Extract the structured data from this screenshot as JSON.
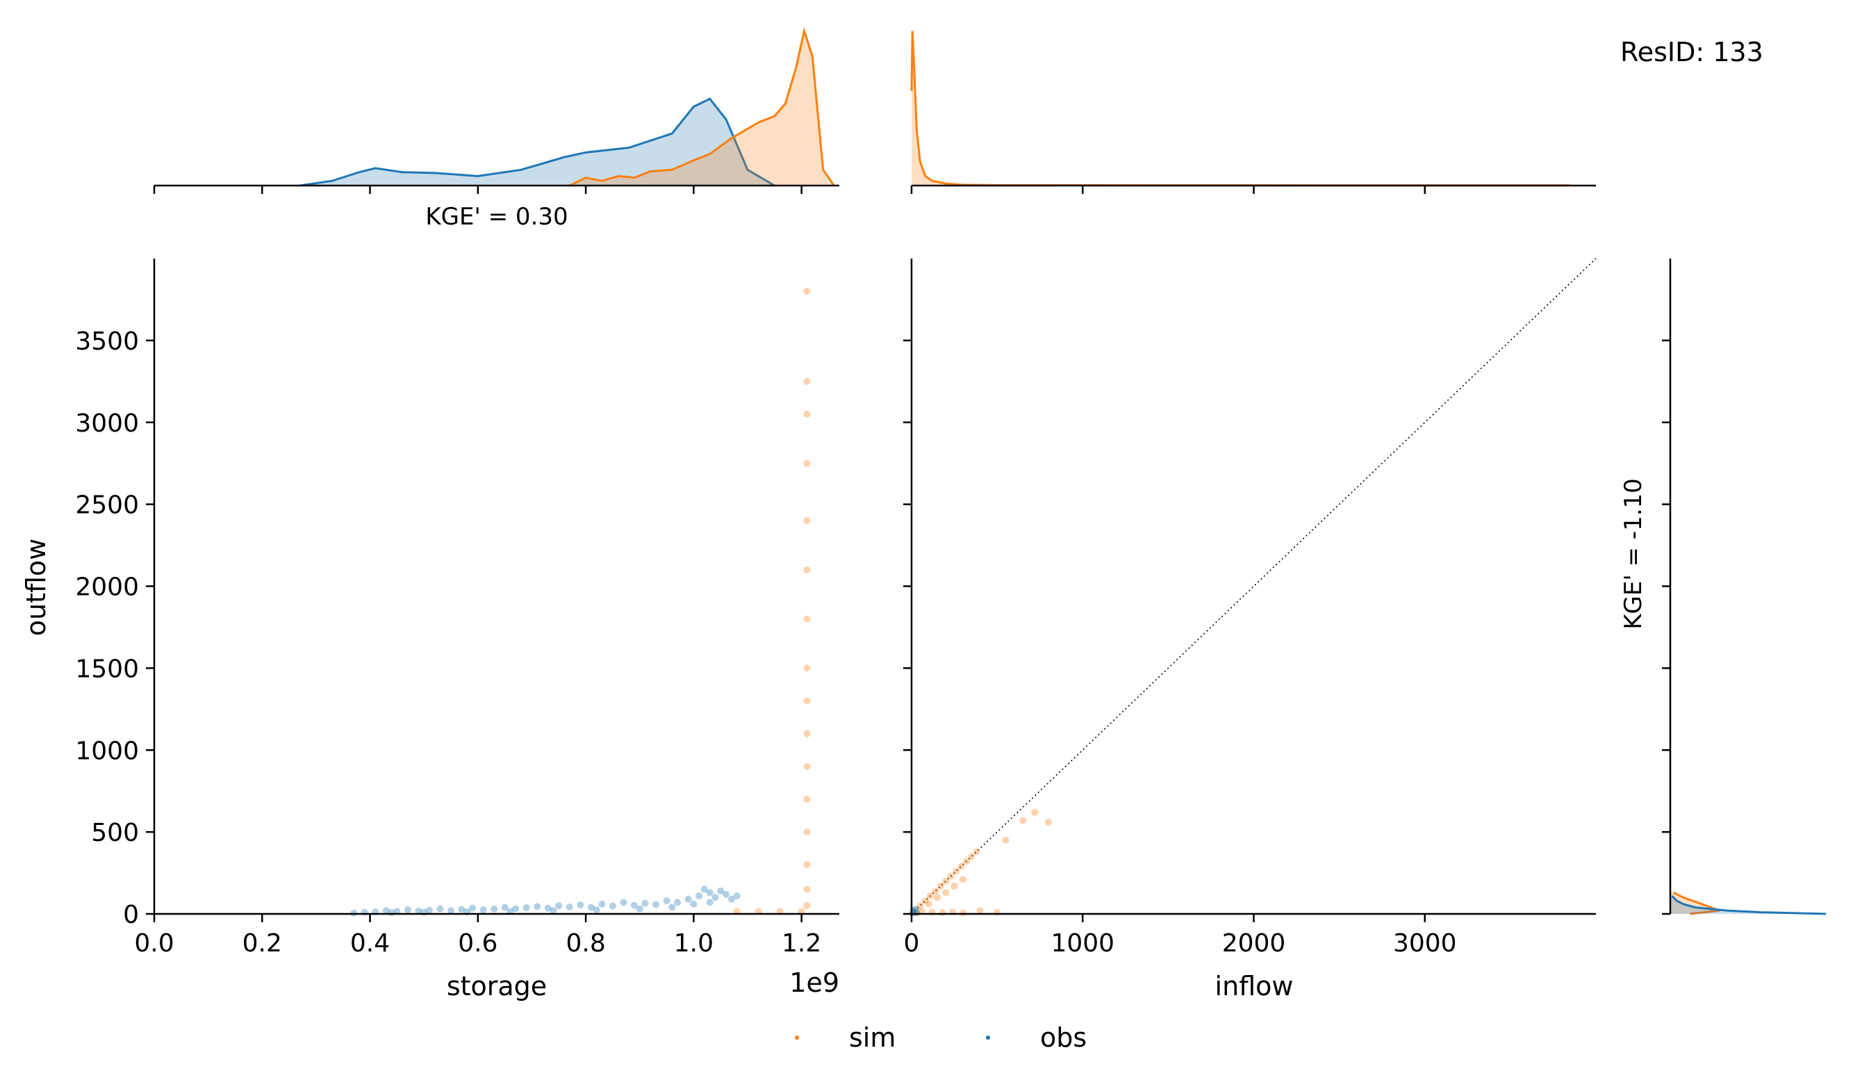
{
  "figure_title": "ResID: 133",
  "colors": {
    "sim": "#ff7f0e",
    "obs": "#1f77b4",
    "reference_line": "#000000"
  },
  "legend": {
    "placement": "bottom-center",
    "entries": [
      {
        "label": "sim",
        "color": "#ff7f0e"
      },
      {
        "label": "obs",
        "color": "#1f77b4"
      }
    ]
  },
  "chart_data": [
    {
      "id": "storage-kde",
      "type": "area",
      "annotation": "KGE' = 0.30",
      "xlim": [
        0,
        1270000000
      ],
      "series": [
        {
          "name": "obs",
          "x": [
            270000000,
            330000000,
            380000000,
            410000000,
            460000000,
            520000000,
            600000000,
            680000000,
            760000000,
            800000000,
            880000000,
            960000000,
            1000000000,
            1030000000,
            1060000000,
            1100000000,
            1150000000
          ],
          "values": [
            0.0,
            0.03,
            0.085,
            0.11,
            0.085,
            0.08,
            0.06,
            0.1,
            0.18,
            0.21,
            0.24,
            0.33,
            0.5,
            0.55,
            0.42,
            0.1,
            0.0
          ]
        },
        {
          "name": "sim",
          "x": [
            770000000,
            800000000,
            830000000,
            860000000,
            890000000,
            920000000,
            960000000,
            1000000000,
            1030000000,
            1070000000,
            1120000000,
            1150000000,
            1170000000,
            1190000000,
            1205000000,
            1220000000,
            1240000000,
            1260000000
          ],
          "values": [
            0.0,
            0.05,
            0.03,
            0.06,
            0.05,
            0.09,
            0.1,
            0.16,
            0.2,
            0.3,
            0.4,
            0.44,
            0.52,
            0.75,
            0.98,
            0.82,
            0.1,
            0.0
          ]
        }
      ]
    },
    {
      "id": "inflow-kde",
      "type": "area",
      "xlim": [
        0,
        4000
      ],
      "series": [
        {
          "name": "sim",
          "x": [
            0,
            5,
            15,
            30,
            50,
            80,
            120,
            200,
            300,
            500,
            1000,
            2000,
            3000,
            3850
          ],
          "values": [
            0.6,
            0.98,
            0.75,
            0.35,
            0.15,
            0.06,
            0.03,
            0.012,
            0.005,
            0.003,
            0.002,
            0.0015,
            0.001,
            0.001
          ]
        }
      ]
    },
    {
      "id": "outflow-kde",
      "type": "area",
      "annotation": "KGE' = -1.10",
      "ylim": [
        0,
        4000
      ],
      "series": [
        {
          "name": "sim",
          "y": [
            0,
            20,
            50,
            100,
            130
          ],
          "values": [
            0.12,
            0.3,
            0.22,
            0.08,
            0.02
          ]
        },
        {
          "name": "obs",
          "y": [
            0,
            10,
            20,
            40,
            60,
            80,
            110
          ],
          "values": [
            0.95,
            0.55,
            0.35,
            0.15,
            0.08,
            0.04,
            0.01
          ]
        }
      ]
    },
    {
      "id": "storage-outflow",
      "type": "scatter",
      "xlabel": "storage",
      "ylabel": "outflow",
      "x_offset_text": "1e9",
      "xlim": [
        0,
        1270000000
      ],
      "ylim": [
        0,
        4000
      ],
      "xticks": [
        0,
        200000000,
        400000000,
        600000000,
        800000000,
        1000000000,
        1200000000
      ],
      "xtick_labels": [
        "0.0",
        "0.2",
        "0.4",
        "0.6",
        "0.8",
        "1.0",
        "1.2"
      ],
      "yticks": [
        0,
        500,
        1000,
        1500,
        2000,
        2500,
        3000,
        3500
      ],
      "ytick_labels": [
        "0",
        "500",
        "1000",
        "1500",
        "2000",
        "2500",
        "3000",
        "3500"
      ],
      "series": [
        {
          "name": "obs",
          "points": [
            [
              370000000,
              5
            ],
            [
              390000000,
              10
            ],
            [
              410000000,
              12
            ],
            [
              430000000,
              20
            ],
            [
              450000000,
              15
            ],
            [
              470000000,
              25
            ],
            [
              490000000,
              18
            ],
            [
              510000000,
              22
            ],
            [
              530000000,
              30
            ],
            [
              550000000,
              20
            ],
            [
              570000000,
              28
            ],
            [
              590000000,
              35
            ],
            [
              610000000,
              25
            ],
            [
              630000000,
              30
            ],
            [
              650000000,
              40
            ],
            [
              670000000,
              32
            ],
            [
              690000000,
              38
            ],
            [
              710000000,
              45
            ],
            [
              730000000,
              35
            ],
            [
              750000000,
              50
            ],
            [
              770000000,
              42
            ],
            [
              790000000,
              55
            ],
            [
              810000000,
              40
            ],
            [
              830000000,
              60
            ],
            [
              850000000,
              48
            ],
            [
              870000000,
              70
            ],
            [
              890000000,
              52
            ],
            [
              910000000,
              65
            ],
            [
              930000000,
              58
            ],
            [
              950000000,
              80
            ],
            [
              970000000,
              70
            ],
            [
              990000000,
              90
            ],
            [
              1010000000,
              110
            ],
            [
              1020000000,
              150
            ],
            [
              1030000000,
              130
            ],
            [
              1040000000,
              100
            ],
            [
              1050000000,
              140
            ],
            [
              1060000000,
              120
            ],
            [
              1070000000,
              90
            ],
            [
              1080000000,
              110
            ],
            [
              1000000000,
              60
            ],
            [
              960000000,
              40
            ],
            [
              900000000,
              30
            ],
            [
              820000000,
              25
            ],
            [
              740000000,
              20
            ],
            [
              660000000,
              15
            ],
            [
              580000000,
              12
            ],
            [
              500000000,
              10
            ],
            [
              440000000,
              8
            ],
            [
              1030000000,
              70
            ]
          ]
        },
        {
          "name": "sim",
          "points": [
            [
              1080000000,
              15
            ],
            [
              1120000000,
              15
            ],
            [
              1160000000,
              15
            ],
            [
              1200000000,
              15
            ],
            [
              1210000000,
              50
            ],
            [
              1210000000,
              150
            ],
            [
              1210000000,
              300
            ],
            [
              1210000000,
              500
            ],
            [
              1210000000,
              700
            ],
            [
              1210000000,
              900
            ],
            [
              1210000000,
              1100
            ],
            [
              1210000000,
              1300
            ],
            [
              1210000000,
              1500
            ],
            [
              1210000000,
              1800
            ],
            [
              1210000000,
              2100
            ],
            [
              1210000000,
              2400
            ],
            [
              1210000000,
              2750
            ],
            [
              1210000000,
              3050
            ],
            [
              1210000000,
              3250
            ],
            [
              1210000000,
              3800
            ]
          ]
        }
      ]
    },
    {
      "id": "inflow-outflow",
      "type": "scatter",
      "xlabel": "inflow",
      "xlim": [
        0,
        4000
      ],
      "ylim": [
        0,
        4000
      ],
      "xticks": [
        0,
        1000,
        2000,
        3000
      ],
      "xtick_labels": [
        "0",
        "1000",
        "2000",
        "3000"
      ],
      "yticks": [
        0,
        500,
        1000,
        1500,
        2000,
        2500,
        3000,
        3500
      ],
      "reference_line": {
        "style": "dotted",
        "from": [
          0,
          0
        ],
        "to": [
          4000,
          4000
        ]
      },
      "series": [
        {
          "name": "sim",
          "points": [
            [
              20,
              20
            ],
            [
              50,
              50
            ],
            [
              80,
              80
            ],
            [
              110,
              110
            ],
            [
              140,
              140
            ],
            [
              170,
              170
            ],
            [
              200,
              200
            ],
            [
              230,
              230
            ],
            [
              260,
              260
            ],
            [
              290,
              290
            ],
            [
              320,
              320
            ],
            [
              350,
              350
            ],
            [
              380,
              380
            ],
            [
              100,
              60
            ],
            [
              150,
              100
            ],
            [
              200,
              130
            ],
            [
              250,
              170
            ],
            [
              300,
              210
            ],
            [
              120,
              10
            ],
            [
              180,
              8
            ],
            [
              240,
              12
            ],
            [
              300,
              6
            ],
            [
              400,
              20
            ],
            [
              500,
              10
            ],
            [
              550,
              450
            ],
            [
              650,
              570
            ],
            [
              720,
              620
            ],
            [
              800,
              560
            ],
            [
              60,
              15
            ],
            [
              30,
              5
            ]
          ]
        },
        {
          "name": "obs",
          "points": [
            [
              5,
              5
            ],
            [
              10,
              20
            ],
            [
              15,
              10
            ],
            [
              25,
              30
            ],
            [
              30,
              8
            ]
          ]
        }
      ]
    }
  ]
}
